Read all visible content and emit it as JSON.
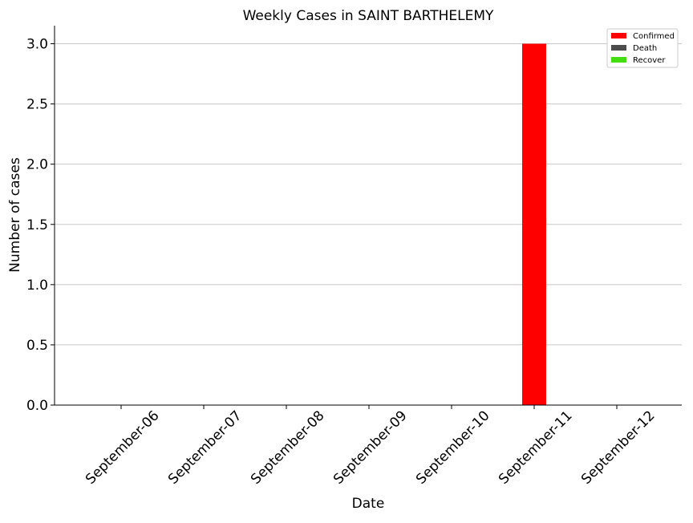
{
  "chart_data": {
    "type": "bar",
    "title": "Weekly Cases in SAINT BARTHELEMY",
    "xlabel": "Date",
    "ylabel": "Number of cases",
    "categories": [
      "September-06",
      "September-07",
      "September-08",
      "September-09",
      "September-10",
      "September-11",
      "September-12"
    ],
    "series": [
      {
        "name": "Confirmed",
        "color": "#ff0000",
        "values": [
          0,
          0,
          0,
          0,
          0,
          3,
          0
        ]
      },
      {
        "name": "Death",
        "color": "#4d4d4d",
        "values": [
          0,
          0,
          0,
          0,
          0,
          0,
          0
        ]
      },
      {
        "name": "Recover",
        "color": "#44dd11",
        "values": [
          0,
          0,
          0,
          0,
          0,
          0,
          0
        ]
      }
    ],
    "ylim": [
      0,
      3.15
    ],
    "yticks": [
      "0.0",
      "0.5",
      "1.0",
      "1.5",
      "2.0",
      "2.5",
      "3.0"
    ],
    "ytick_values": [
      0,
      0.5,
      1.0,
      1.5,
      2.0,
      2.5,
      3.0
    ],
    "grid": "horizontal",
    "legend_position": "top-right"
  }
}
